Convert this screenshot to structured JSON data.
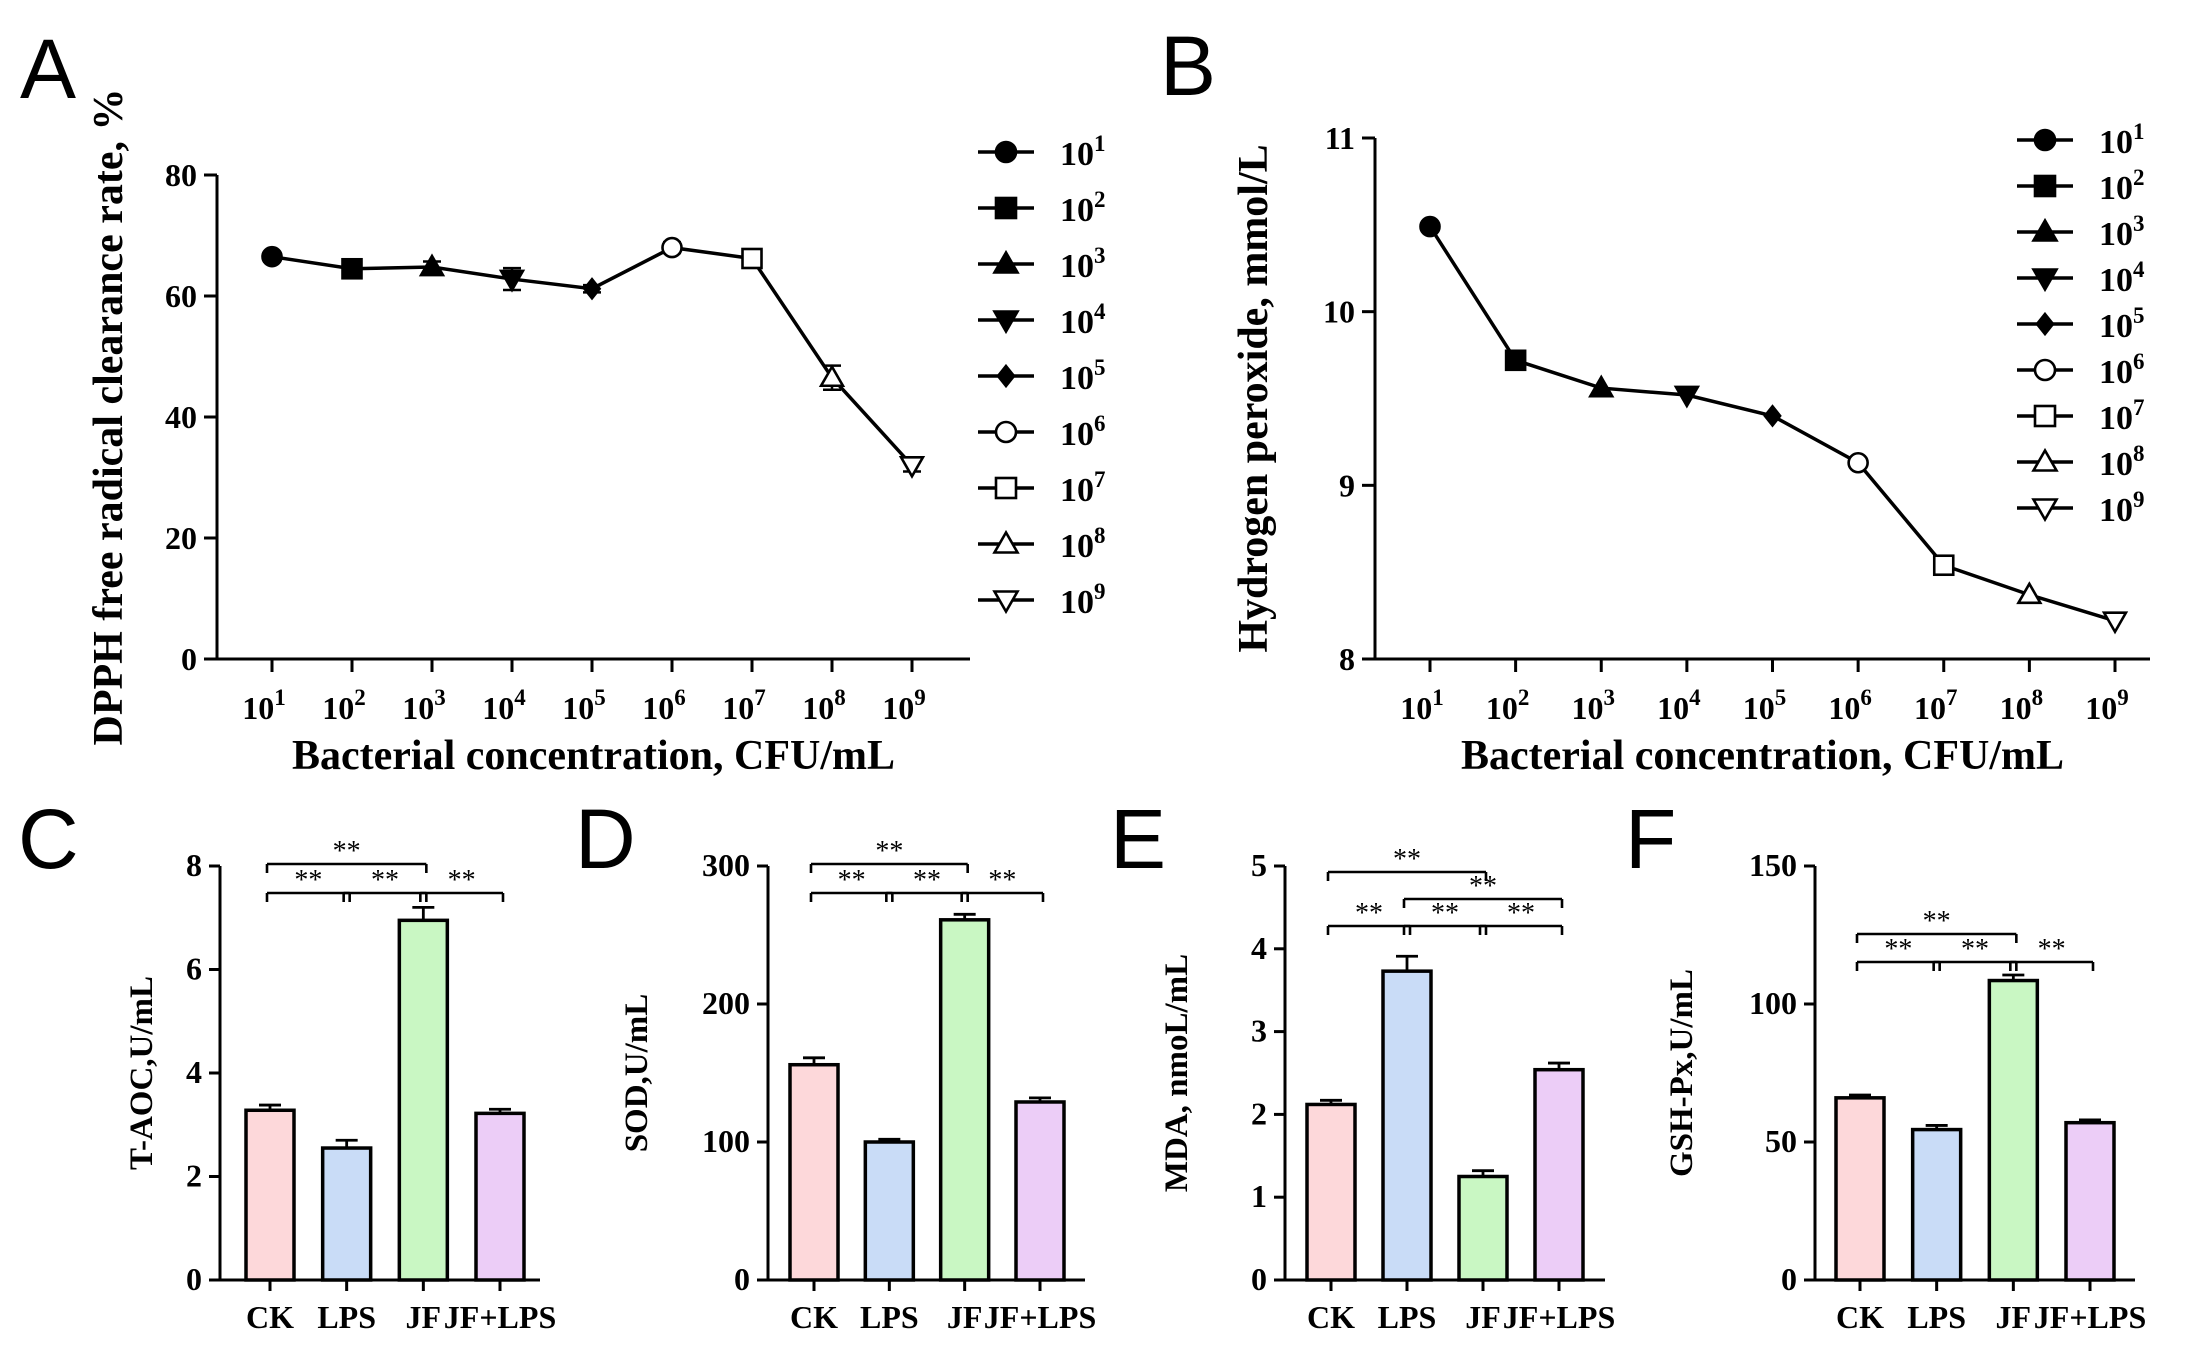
{
  "panels": {
    "A": "A",
    "B": "B",
    "C": "C",
    "D": "D",
    "E": "E",
    "F": "F"
  },
  "chart_data": [
    {
      "id": "A",
      "type": "line",
      "xlabel": "Bacterial concentration, CFU/mL",
      "ylabel": "DPPH free radical clearance rate, %",
      "ylim": [
        0,
        80
      ],
      "yticks": [
        0,
        20,
        40,
        60,
        80
      ],
      "categories": [
        "10^1",
        "10^2",
        "10^3",
        "10^4",
        "10^5",
        "10^6",
        "10^7",
        "10^8",
        "10^9"
      ],
      "values": [
        66.5,
        64.5,
        64.8,
        62.8,
        61.2,
        68.0,
        66.2,
        46.5,
        32.0
      ],
      "errors": [
        0.8,
        0.7,
        0.9,
        1.8,
        0.6,
        0.9,
        0.8,
        2.0,
        1.0
      ],
      "legend": [
        "10^1",
        "10^2",
        "10^3",
        "10^4",
        "10^5",
        "10^6",
        "10^7",
        "10^8",
        "10^9"
      ],
      "markers": [
        "circle",
        "square",
        "triangle-up",
        "triangle-down",
        "diamond",
        "circle-open",
        "square-open",
        "triangle-up-open",
        "triangle-down-open"
      ]
    },
    {
      "id": "B",
      "type": "line",
      "xlabel": "Bacterial concentration, CFU/mL",
      "ylabel": "Hydrogen peroxide, mmol/L",
      "ylim": [
        8,
        11
      ],
      "yticks": [
        8,
        9,
        10,
        11
      ],
      "categories": [
        "10^1",
        "10^2",
        "10^3",
        "10^4",
        "10^5",
        "10^6",
        "10^7",
        "10^8",
        "10^9"
      ],
      "values": [
        10.49,
        9.72,
        9.56,
        9.52,
        9.4,
        9.13,
        8.54,
        8.37,
        8.22
      ],
      "errors": [
        0,
        0,
        0,
        0,
        0,
        0,
        0,
        0,
        0
      ],
      "legend": [
        "10^1",
        "10^2",
        "10^3",
        "10^4",
        "10^5",
        "10^6",
        "10^7",
        "10^8",
        "10^9"
      ],
      "markers": [
        "circle",
        "square",
        "triangle-up",
        "triangle-down",
        "diamond",
        "circle-open",
        "square-open",
        "triangle-up-open",
        "triangle-down-open"
      ]
    },
    {
      "id": "C",
      "type": "bar",
      "ylabel": "T-AOC,U/mL",
      "ylim": [
        0,
        8
      ],
      "yticks": [
        0,
        2,
        4,
        6,
        8
      ],
      "categories": [
        "CK",
        "LPS",
        "JF",
        "JF+LPS"
      ],
      "values": [
        3.28,
        2.55,
        6.95,
        3.22
      ],
      "errors": [
        0.1,
        0.15,
        0.25,
        0.08
      ],
      "colors": [
        "#fdd8da",
        "#c9dcf7",
        "#c9f7c3",
        "#eccdf7"
      ],
      "significance": [
        {
          "from": 0,
          "to": 2,
          "label": "**",
          "level": 2
        },
        {
          "from": 0,
          "to": 1,
          "label": "**",
          "level": 1
        },
        {
          "from": 1,
          "to": 2,
          "label": "**",
          "level": 1
        },
        {
          "from": 2,
          "to": 3,
          "label": "**",
          "level": 1
        }
      ]
    },
    {
      "id": "D",
      "type": "bar",
      "ylabel": "SOD,U/mL",
      "ylim": [
        0,
        300
      ],
      "yticks": [
        0,
        100,
        200,
        300
      ],
      "categories": [
        "CK",
        "LPS",
        "JF",
        "JF+LPS"
      ],
      "values": [
        156,
        100,
        261,
        129
      ],
      "errors": [
        5,
        2,
        4,
        3
      ],
      "colors": [
        "#fdd8da",
        "#c9dcf7",
        "#c9f7c3",
        "#eccdf7"
      ],
      "significance": [
        {
          "from": 0,
          "to": 2,
          "label": "**",
          "level": 2
        },
        {
          "from": 0,
          "to": 1,
          "label": "**",
          "level": 1
        },
        {
          "from": 1,
          "to": 2,
          "label": "**",
          "level": 1
        },
        {
          "from": 2,
          "to": 3,
          "label": "**",
          "level": 1
        }
      ]
    },
    {
      "id": "E",
      "type": "bar",
      "ylabel": "MDA, nmoL/mL",
      "ylim": [
        0,
        5
      ],
      "yticks": [
        0,
        1,
        2,
        3,
        4,
        5
      ],
      "categories": [
        "CK",
        "LPS",
        "JF",
        "JF+LPS"
      ],
      "values": [
        2.12,
        3.73,
        1.25,
        2.54
      ],
      "errors": [
        0.05,
        0.18,
        0.07,
        0.08
      ],
      "colors": [
        "#fdd8da",
        "#c9dcf7",
        "#c9f7c3",
        "#eccdf7"
      ],
      "significance": [
        {
          "from": 0,
          "to": 2,
          "label": "**",
          "level": 3
        },
        {
          "from": 1,
          "to": 3,
          "label": "**",
          "level": 2
        },
        {
          "from": 0,
          "to": 1,
          "label": "**",
          "level": 1
        },
        {
          "from": 1,
          "to": 2,
          "label": "**",
          "level": 1
        },
        {
          "from": 2,
          "to": 3,
          "label": "**",
          "level": 1
        }
      ]
    },
    {
      "id": "F",
      "type": "bar",
      "ylabel": "GSH-Px,U/mL",
      "ylim": [
        0,
        150
      ],
      "yticks": [
        0,
        50,
        100,
        150
      ],
      "categories": [
        "CK",
        "LPS",
        "JF",
        "JF+LPS"
      ],
      "values": [
        66,
        54.5,
        108.5,
        57
      ],
      "errors": [
        1,
        1.5,
        2,
        1
      ],
      "colors": [
        "#fdd8da",
        "#c9dcf7",
        "#c9f7c3",
        "#eccdf7"
      ],
      "significance": [
        {
          "from": 0,
          "to": 2,
          "label": "**",
          "level": 2
        },
        {
          "from": 0,
          "to": 1,
          "label": "**",
          "level": 1
        },
        {
          "from": 1,
          "to": 2,
          "label": "**",
          "level": 1
        },
        {
          "from": 2,
          "to": 3,
          "label": "**",
          "level": 1
        }
      ]
    }
  ]
}
